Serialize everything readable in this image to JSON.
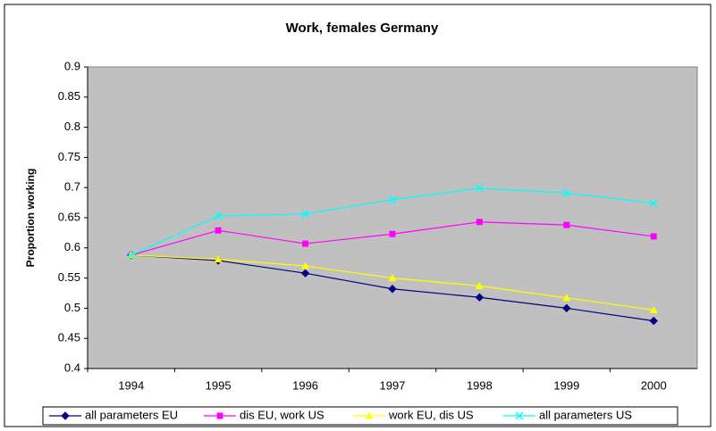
{
  "chart_data": {
    "type": "line",
    "title": "Work, females Germany",
    "y_label": "Proportion working",
    "categories": [
      "1994",
      "1995",
      "1996",
      "1997",
      "1998",
      "1999",
      "2000"
    ],
    "series": [
      {
        "name": "all parameters EU",
        "color": "#000080",
        "values": [
          0.588,
          0.579,
          0.558,
          0.532,
          0.518,
          0.5,
          0.479
        ]
      },
      {
        "name": "dis EU, work US",
        "color": "#ff00ff",
        "values": [
          0.588,
          0.629,
          0.607,
          0.623,
          0.643,
          0.638,
          0.619
        ]
      },
      {
        "name": "work EU, dis US",
        "color": "#ffff00",
        "values": [
          0.588,
          0.581,
          0.57,
          0.55,
          0.537,
          0.517,
          0.497
        ]
      },
      {
        "name": "all parameters US",
        "color": "#00ffff",
        "values": [
          0.588,
          0.653,
          0.656,
          0.68,
          0.699,
          0.691,
          0.674
        ]
      }
    ],
    "ylim": [
      0.4,
      0.9
    ],
    "yticks": [
      0.4,
      0.45,
      0.5,
      0.55,
      0.6,
      0.65,
      0.7,
      0.75,
      0.8,
      0.85,
      0.9
    ],
    "grid": false,
    "legend": "bottom",
    "plot_background": "#c0c0c0"
  }
}
